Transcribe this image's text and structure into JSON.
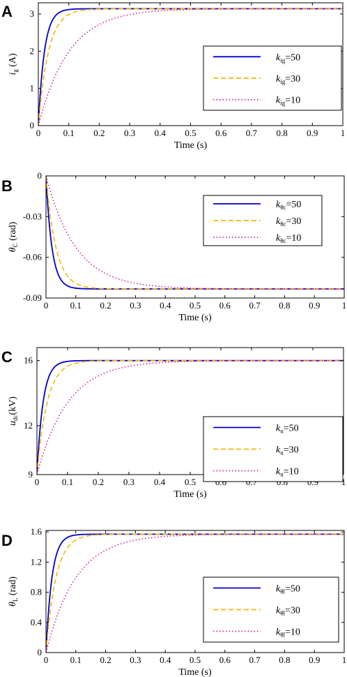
{
  "chart_data": [
    {
      "panel": "A",
      "type": "line",
      "xlabel": "Time (s)",
      "ylabel_main": "i",
      "ylabel_sub": "g",
      "ylabel_unit": " (A)",
      "xlim": [
        0,
        1
      ],
      "ylim": [
        0,
        3.3
      ],
      "xticks": [
        "0",
        "0.1",
        "0.2",
        "0.3",
        "0.4",
        "0.5",
        "0.6",
        "0.7",
        "0.8",
        "0.9",
        "1"
      ],
      "yticks": [
        "0",
        "1",
        "2",
        "3"
      ],
      "ytick_values": [
        0,
        1,
        2,
        3
      ],
      "series": [
        {
          "name_main": "k",
          "name_sub": "ig",
          "name_suffix": "=50",
          "start": 0,
          "final": 3.14,
          "tau": 0.02,
          "color": "#0000cc",
          "dash": ""
        },
        {
          "name_main": "k",
          "name_sub": "ig",
          "name_suffix": "=30",
          "start": 0,
          "final": 3.14,
          "tau": 0.0333,
          "color": "#f5b800",
          "dash": "7,4"
        },
        {
          "name_main": "k",
          "name_sub": "ig",
          "name_suffix": "=10",
          "start": 0,
          "final": 3.14,
          "tau": 0.1,
          "color": "#cc22aa",
          "dash": "1.5,3"
        }
      ]
    },
    {
      "panel": "B",
      "type": "line",
      "xlabel": "Time (s)",
      "ylabel_main": "θ",
      "ylabel_sub": "C",
      "ylabel_unit": " (rad)",
      "xlim": [
        0,
        1
      ],
      "ylim": [
        -0.09,
        0
      ],
      "xticks": [
        "0",
        "0.1",
        "0.2",
        "0.3",
        "0.4",
        "0.5",
        "0.6",
        "0.7",
        "0.8",
        "0.9",
        "1"
      ],
      "yticks": [
        "0",
        "-0.03",
        "-0.06",
        "-0.09"
      ],
      "ytick_values": [
        0,
        -0.03,
        -0.06,
        -0.09
      ],
      "series": [
        {
          "name_main": "k",
          "name_sub": "θc",
          "name_suffix": "=50",
          "start": 0,
          "final": -0.0833,
          "tau": 0.02,
          "color": "#0000cc",
          "dash": ""
        },
        {
          "name_main": "k",
          "name_sub": "θc",
          "name_suffix": "=30",
          "start": 0,
          "final": -0.0833,
          "tau": 0.0333,
          "color": "#f5b800",
          "dash": "7,4"
        },
        {
          "name_main": "k",
          "name_sub": "θc",
          "name_suffix": "=10",
          "start": 0,
          "final": -0.0833,
          "tau": 0.1,
          "color": "#cc22aa",
          "dash": "1.5,3"
        }
      ]
    },
    {
      "panel": "C",
      "type": "line",
      "xlabel": "Time (s)",
      "ylabel_main": "u",
      "ylabel_sub": "dc",
      "ylabel_unit": "(kV)",
      "xlim": [
        0,
        1
      ],
      "ylim": [
        9,
        16.8
      ],
      "xticks": [
        "0",
        "0.1",
        "0.2",
        "0.3",
        "0.4",
        "0.5",
        "0.6",
        "0.7",
        "0.8",
        "0.9",
        "1"
      ],
      "yticks": [
        "9",
        "12",
        "16"
      ],
      "ytick_values": [
        9,
        12,
        16
      ],
      "series": [
        {
          "name_main": "k",
          "name_sub": "u",
          "name_suffix": "=50",
          "start": 9,
          "final": 16,
          "tau": 0.02,
          "color": "#0000cc",
          "dash": ""
        },
        {
          "name_main": "k",
          "name_sub": "u",
          "name_suffix": "=30",
          "start": 9,
          "final": 16,
          "tau": 0.0333,
          "color": "#f5b800",
          "dash": "7,4"
        },
        {
          "name_main": "k",
          "name_sub": "u",
          "name_suffix": "=10",
          "start": 9,
          "final": 16,
          "tau": 0.1,
          "color": "#cc22aa",
          "dash": "1.5,3"
        }
      ]
    },
    {
      "panel": "D",
      "type": "line",
      "xlabel": "Time (s)",
      "ylabel_main": "θ",
      "ylabel_sub": "L",
      "ylabel_unit": " (rad)",
      "xlim": [
        0,
        1
      ],
      "ylim": [
        0,
        1.62
      ],
      "xticks": [
        "0",
        "0.1",
        "0.2",
        "0.3",
        "0.4",
        "0.5",
        "0.6",
        "0.7",
        "0.8",
        "0.9",
        "1"
      ],
      "yticks": [
        "0",
        "0.4",
        "0.8",
        "1.2",
        "1.6"
      ],
      "ytick_values": [
        0,
        0.4,
        0.8,
        1.2,
        1.6
      ],
      "series": [
        {
          "name_main": "k",
          "name_sub": "θl",
          "name_suffix": "=50",
          "start": 0,
          "final": 1.57,
          "tau": 0.02,
          "color": "#0000cc",
          "dash": ""
        },
        {
          "name_main": "k",
          "name_sub": "θl",
          "name_suffix": "=30",
          "start": 0,
          "final": 1.57,
          "tau": 0.0333,
          "color": "#f5b800",
          "dash": "7,4"
        },
        {
          "name_main": "k",
          "name_sub": "θl",
          "name_suffix": "=10",
          "start": 0,
          "final": 1.57,
          "tau": 0.1,
          "color": "#cc22aa",
          "dash": "1.5,3"
        }
      ]
    }
  ]
}
